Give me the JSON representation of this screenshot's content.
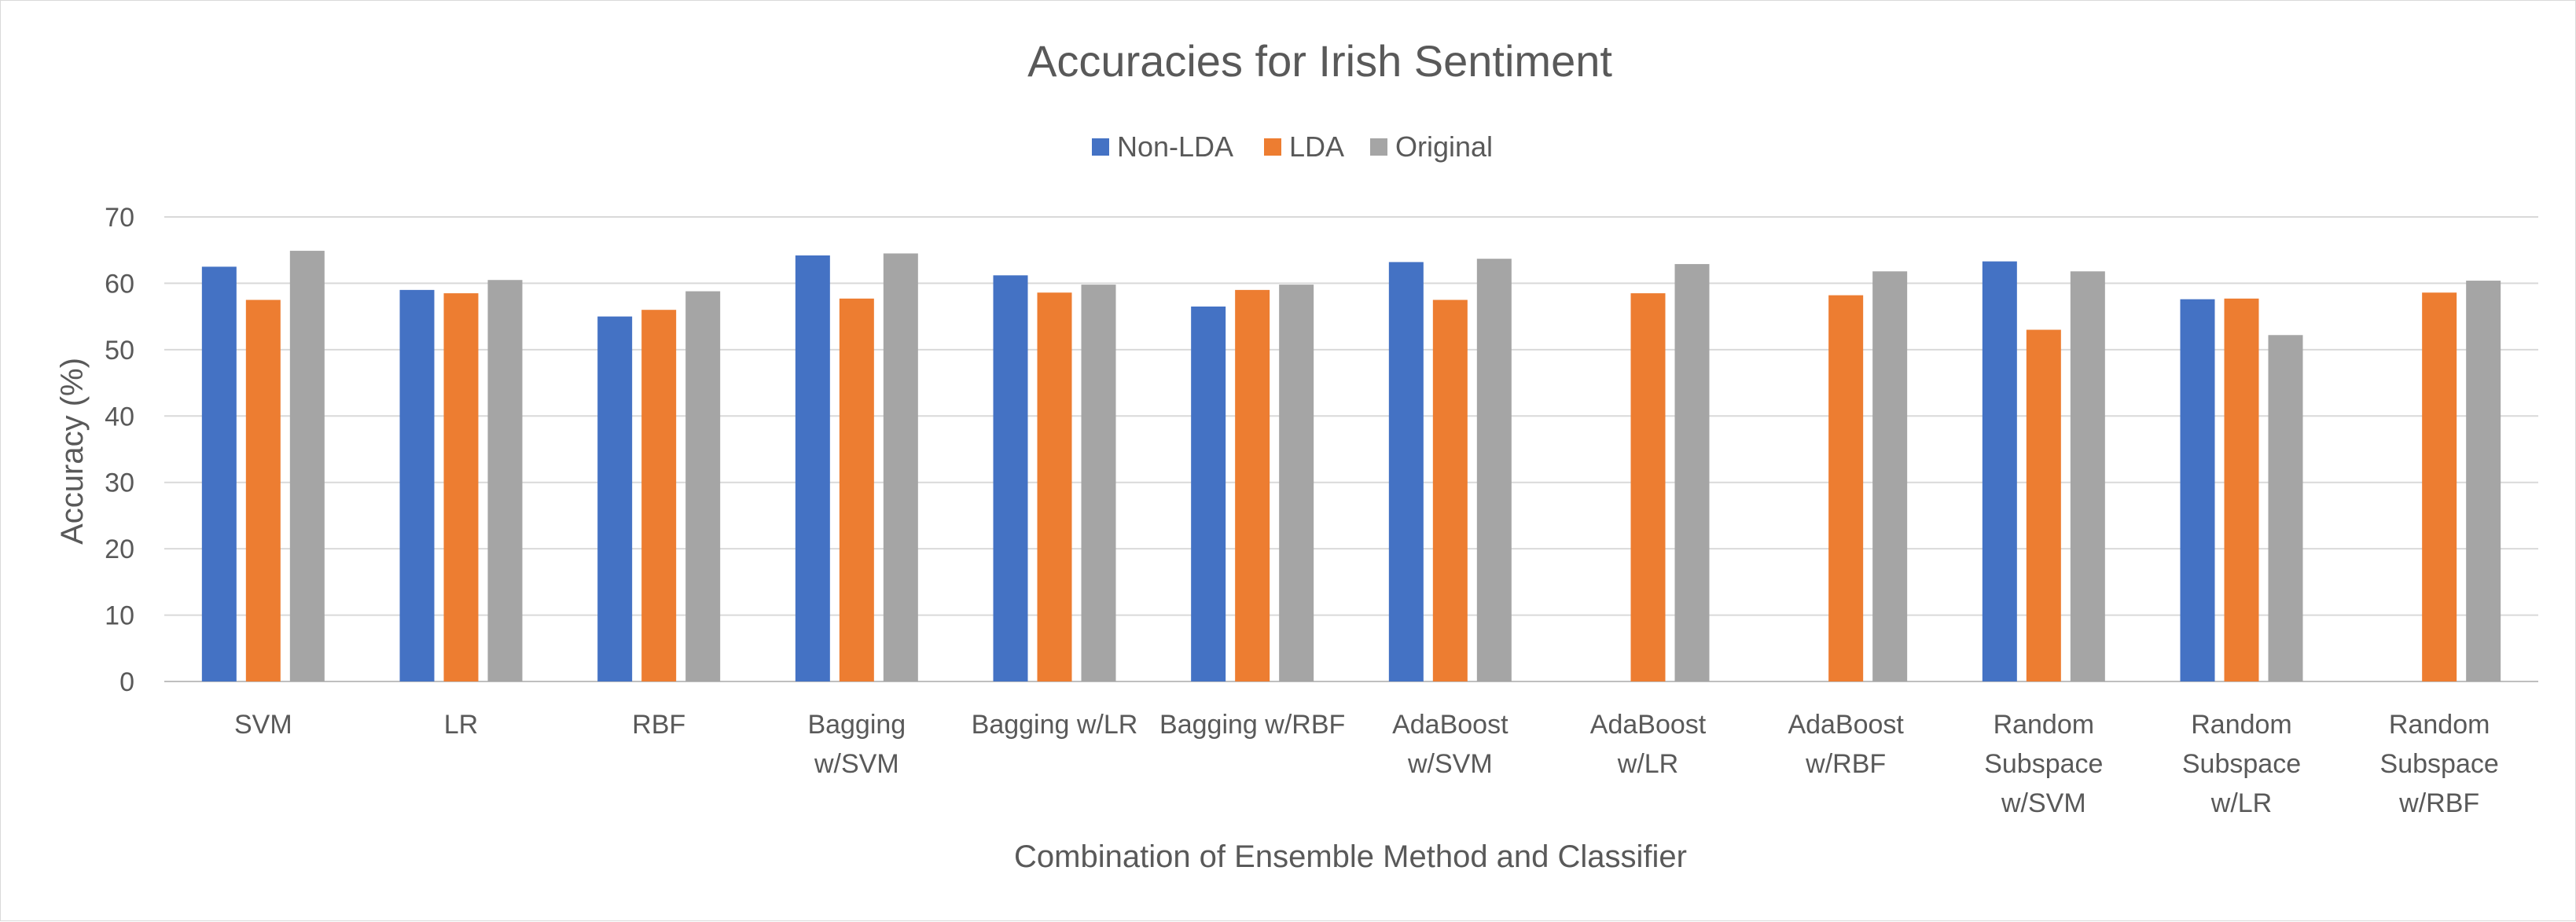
{
  "chart_data": {
    "type": "bar",
    "title": "Accuracies for Irish Sentiment",
    "xlabel": "Combination of Ensemble Method and Classifier",
    "ylabel": "Accuracy (%)",
    "ylim": [
      0,
      70
    ],
    "yticks": [
      0,
      10,
      20,
      30,
      40,
      50,
      60,
      70
    ],
    "grid": true,
    "legend_position": "top",
    "categories": [
      [
        "SVM"
      ],
      [
        "LR"
      ],
      [
        "RBF"
      ],
      [
        "Bagging",
        "w/SVM"
      ],
      [
        "Bagging w/LR"
      ],
      [
        "Bagging w/RBF"
      ],
      [
        "AdaBoost",
        "w/SVM"
      ],
      [
        "AdaBoost",
        "w/LR"
      ],
      [
        "AdaBoost",
        "w/RBF"
      ],
      [
        "Random",
        "Subspace",
        "w/SVM"
      ],
      [
        "Random",
        "Subspace",
        "w/LR"
      ],
      [
        "Random",
        "Subspace",
        "w/RBF"
      ]
    ],
    "series": [
      {
        "name": "Non-LDA",
        "color": "#4472C4",
        "values": [
          62.5,
          59.0,
          55.0,
          64.2,
          61.2,
          56.5,
          63.2,
          null,
          null,
          63.3,
          57.6,
          null
        ]
      },
      {
        "name": "LDA",
        "color": "#ED7D31",
        "values": [
          57.5,
          58.5,
          56.0,
          57.7,
          58.6,
          59.0,
          57.5,
          58.5,
          58.2,
          53.0,
          57.7,
          58.6
        ]
      },
      {
        "name": "Original",
        "color": "#A5A5A5",
        "values": [
          64.9,
          60.5,
          58.8,
          64.5,
          59.8,
          59.8,
          63.7,
          62.9,
          61.8,
          61.8,
          52.2,
          60.4
        ]
      }
    ]
  }
}
